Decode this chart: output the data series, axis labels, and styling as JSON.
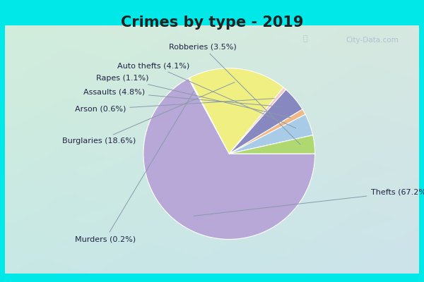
{
  "title": "Crimes by type - 2019",
  "labels_ordered": [
    "Thefts",
    "Murders",
    "Burglaries",
    "Arson",
    "Assaults",
    "Rapes",
    "Auto thefts",
    "Robberies"
  ],
  "values_ordered": [
    67.2,
    0.2,
    18.6,
    0.6,
    4.8,
    1.1,
    4.1,
    3.5
  ],
  "colors_ordered": [
    "#b8a8d8",
    "#f0f0a0",
    "#f0f082",
    "#f5c8c8",
    "#8888c0",
    "#f0b888",
    "#a8cce8",
    "#b0d870"
  ],
  "bg_outer": "#00e8e8",
  "bg_inner_tl": "#d8ede0",
  "bg_inner_br": "#dce8f0",
  "title_fontsize": 15,
  "label_fontsize": 8,
  "watermark": "City-Data.com"
}
